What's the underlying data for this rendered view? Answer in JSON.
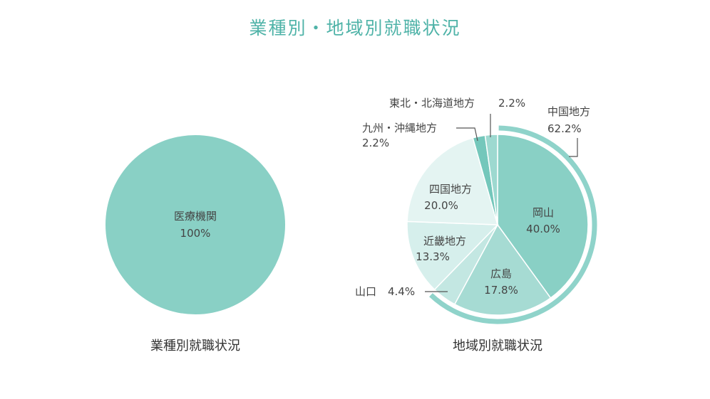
{
  "page": {
    "title": "業種別・地域別就職状況"
  },
  "colors": {
    "title": "#4fb3a8",
    "ring": "#8fd3ca",
    "slices": [
      "#89d0c5",
      "#a6dbd3",
      "#c3e7e2",
      "#d6efec",
      "#e4f4f2",
      "#74c7bb",
      "#9dd9d0"
    ]
  },
  "chart_data": [
    {
      "type": "pie",
      "caption": "業種別就職状況",
      "slices": [
        {
          "label": "医療機関",
          "value": 100,
          "value_label": "100%"
        }
      ]
    },
    {
      "type": "pie",
      "caption": "地域別就職状況",
      "slices": [
        {
          "label": "岡山",
          "value": 40.0,
          "value_label": "40.0%"
        },
        {
          "label": "広島",
          "value": 17.8,
          "value_label": "17.8%"
        },
        {
          "label": "山口",
          "value": 4.4,
          "value_label": "4.4%"
        },
        {
          "label": "近畿地方",
          "value": 13.3,
          "value_label": "13.3%"
        },
        {
          "label": "四国地方",
          "value": 20.0,
          "value_label": "20.0%"
        },
        {
          "label": "九州・沖縄地方",
          "value": 2.2,
          "value_label": "2.2%"
        },
        {
          "label": "東北・北海道地方",
          "value": 2.2,
          "value_label": "2.2%"
        }
      ],
      "group": {
        "label": "中国地方",
        "value": 62.2,
        "value_label": "62.2%"
      }
    }
  ]
}
